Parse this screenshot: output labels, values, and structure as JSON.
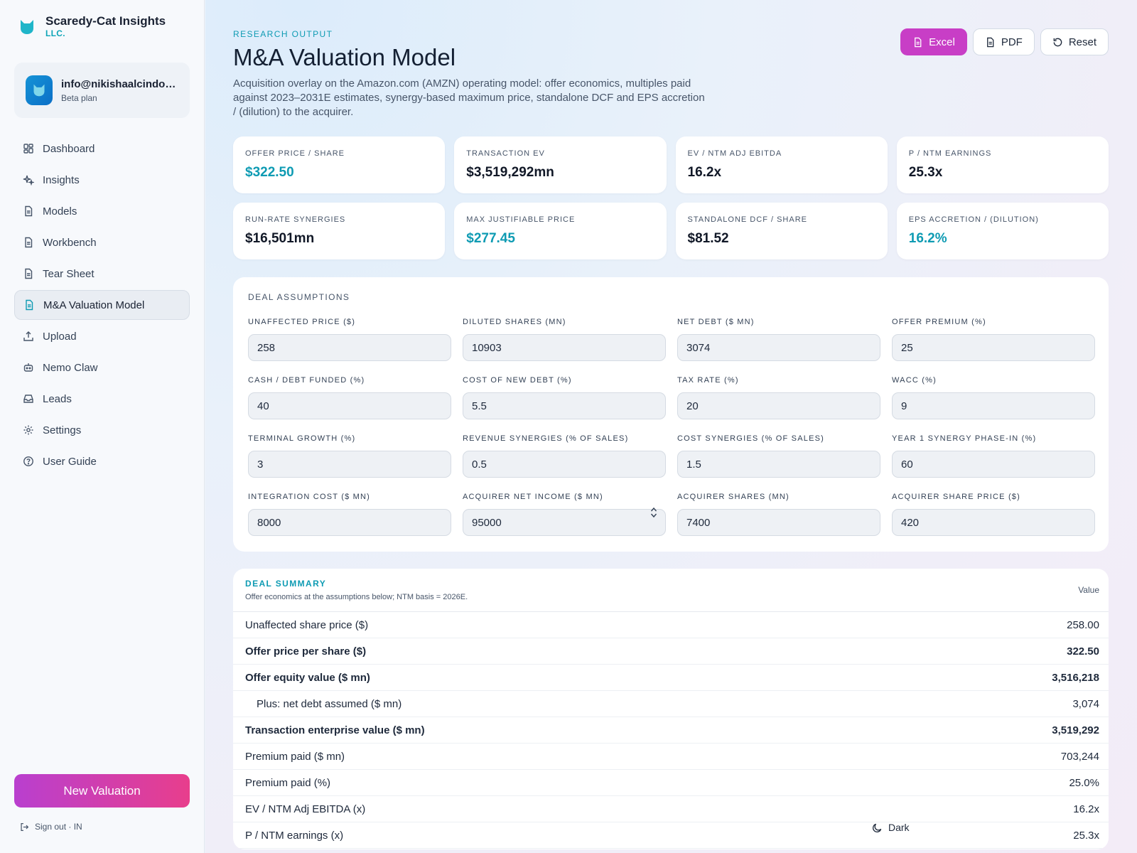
{
  "brand": {
    "name": "Scaredy-Cat Insights",
    "suffix": "LLC."
  },
  "user": {
    "email": "info@nikishaalcindor.com",
    "plan": "Beta plan"
  },
  "nav": [
    {
      "label": "Dashboard",
      "icon": "dashboard-icon"
    },
    {
      "label": "Insights",
      "icon": "sparkles-icon"
    },
    {
      "label": "Models",
      "icon": "file-icon"
    },
    {
      "label": "Workbench",
      "icon": "file-icon"
    },
    {
      "label": "Tear Sheet",
      "icon": "file-icon"
    },
    {
      "label": "M&A Valuation Model",
      "icon": "file-icon",
      "active": true
    },
    {
      "label": "Upload",
      "icon": "upload-icon"
    },
    {
      "label": "Nemo Claw",
      "icon": "robot-icon"
    },
    {
      "label": "Leads",
      "icon": "inbox-icon"
    },
    {
      "label": "Settings",
      "icon": "gear-icon"
    },
    {
      "label": "User Guide",
      "icon": "help-icon"
    }
  ],
  "new_valuation_label": "New Valuation",
  "signout_label": "Sign out · IN",
  "header": {
    "eyebrow": "RESEARCH OUTPUT",
    "title": "M&A Valuation Model",
    "subtitle": "Acquisition overlay on the Amazon.com (AMZN) operating model: offer economics, multiples paid against 2023–2031E estimates, synergy-based maximum price, standalone DCF and EPS accretion / (dilution) to the acquirer."
  },
  "actions": {
    "excel": "Excel",
    "pdf": "PDF",
    "reset": "Reset"
  },
  "kpis": [
    {
      "label": "OFFER PRICE / SHARE",
      "value": "$322.50",
      "accent": true
    },
    {
      "label": "TRANSACTION EV",
      "value": "$3,519,292mn",
      "accent": false
    },
    {
      "label": "EV / NTM ADJ EBITDA",
      "value": "16.2x",
      "accent": false
    },
    {
      "label": "P / NTM EARNINGS",
      "value": "25.3x",
      "accent": false
    },
    {
      "label": "RUN-RATE SYNERGIES",
      "value": "$16,501mn",
      "accent": false
    },
    {
      "label": "MAX JUSTIFIABLE PRICE",
      "value": "$277.45",
      "accent": true
    },
    {
      "label": "STANDALONE DCF / SHARE",
      "value": "$81.52",
      "accent": false
    },
    {
      "label": "EPS ACCRETION / (DILUTION)",
      "value": "16.2%",
      "accent": true
    }
  ],
  "assumptions": {
    "title": "DEAL ASSUMPTIONS",
    "fields": [
      {
        "label": "UNAFFECTED PRICE ($)",
        "value": "258"
      },
      {
        "label": "DILUTED SHARES (MN)",
        "value": "10903"
      },
      {
        "label": "NET DEBT ($ MN)",
        "value": "3074"
      },
      {
        "label": "OFFER PREMIUM (%)",
        "value": "25"
      },
      {
        "label": "CASH / DEBT FUNDED (%)",
        "value": "40"
      },
      {
        "label": "COST OF NEW DEBT (%)",
        "value": "5.5"
      },
      {
        "label": "TAX RATE (%)",
        "value": "20"
      },
      {
        "label": "WACC (%)",
        "value": "9"
      },
      {
        "label": "TERMINAL GROWTH (%)",
        "value": "3"
      },
      {
        "label": "REVENUE SYNERGIES (% OF SALES)",
        "value": "0.5"
      },
      {
        "label": "COST SYNERGIES (% OF SALES)",
        "value": "1.5"
      },
      {
        "label": "YEAR 1 SYNERGY PHASE-IN (%)",
        "value": "60"
      },
      {
        "label": "INTEGRATION COST ($ MN)",
        "value": "8000"
      },
      {
        "label": "ACQUIRER NET INCOME ($ MN)",
        "value": "95000",
        "spinner": true
      },
      {
        "label": "ACQUIRER SHARES (MN)",
        "value": "7400"
      },
      {
        "label": "ACQUIRER SHARE PRICE ($)",
        "value": "420"
      }
    ]
  },
  "summary": {
    "title": "DEAL SUMMARY",
    "subtitle": "Offer economics at the assumptions below; NTM basis = 2026E.",
    "column": "Value",
    "rows": [
      {
        "label": "Unaffected share price ($)",
        "value": "258.00"
      },
      {
        "label": "Offer price per share ($)",
        "value": "322.50",
        "bold": true
      },
      {
        "label": "Offer equity value ($ mn)",
        "value": "3,516,218",
        "bold": true
      },
      {
        "label": "Plus: net debt assumed ($ mn)",
        "value": "3,074",
        "indent": true
      },
      {
        "label": "Transaction enterprise value ($ mn)",
        "value": "3,519,292",
        "bold": true
      },
      {
        "label": "Premium paid ($ mn)",
        "value": "703,244"
      },
      {
        "label": "Premium paid (%)",
        "value": "25.0%"
      },
      {
        "label": "EV / NTM Adj EBITDA (x)",
        "value": "16.2x"
      },
      {
        "label": "P / NTM earnings (x)",
        "value": "25.3x"
      }
    ]
  },
  "dark_toggle_label": "Dark",
  "colors": {
    "accent": "#0e9bb3",
    "brand_button": "#c83ec6",
    "gradient_start": "#b93fcf",
    "gradient_end": "#e83e8c"
  }
}
